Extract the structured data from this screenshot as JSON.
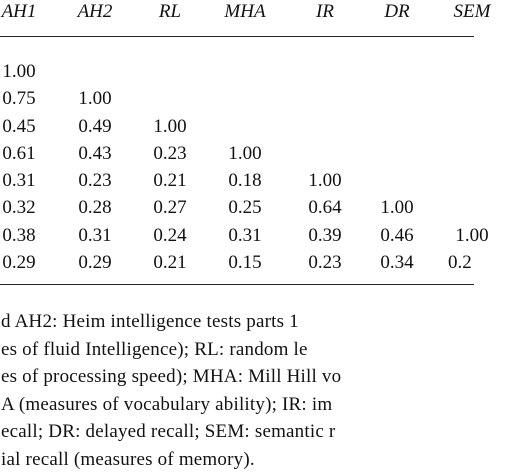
{
  "table": {
    "header": [
      "AH1",
      "AH2",
      "RL",
      "MHA",
      "IR",
      "DR",
      "SEM"
    ],
    "rows": [
      [
        "1.00"
      ],
      [
        "0.75",
        "1.00"
      ],
      [
        "0.45",
        "0.49",
        "1.00"
      ],
      [
        "0.61",
        "0.43",
        "0.23",
        "1.00"
      ],
      [
        "0.31",
        "0.23",
        "0.21",
        "0.18",
        "1.00"
      ],
      [
        "0.32",
        "0.28",
        "0.27",
        "0.25",
        "0.64",
        "1.00"
      ],
      [
        "0.38",
        "0.31",
        "0.24",
        "0.31",
        "0.39",
        "0.46",
        "1.00"
      ],
      [
        "0.29",
        "0.29",
        "0.21",
        "0.15",
        "0.23",
        "0.34",
        "0.2"
      ]
    ]
  },
  "footnote": {
    "lines": [
      "d AH2: Heim intelligence tests parts 1",
      "es of fluid Intelligence); RL: random le",
      "es of processing speed); MHA: Mill Hill vo",
      "A (measures of vocabulary ability); IR: im",
      "ecall; DR: delayed recall; SEM: semantic r",
      "ial recall (measures of memory)."
    ]
  }
}
